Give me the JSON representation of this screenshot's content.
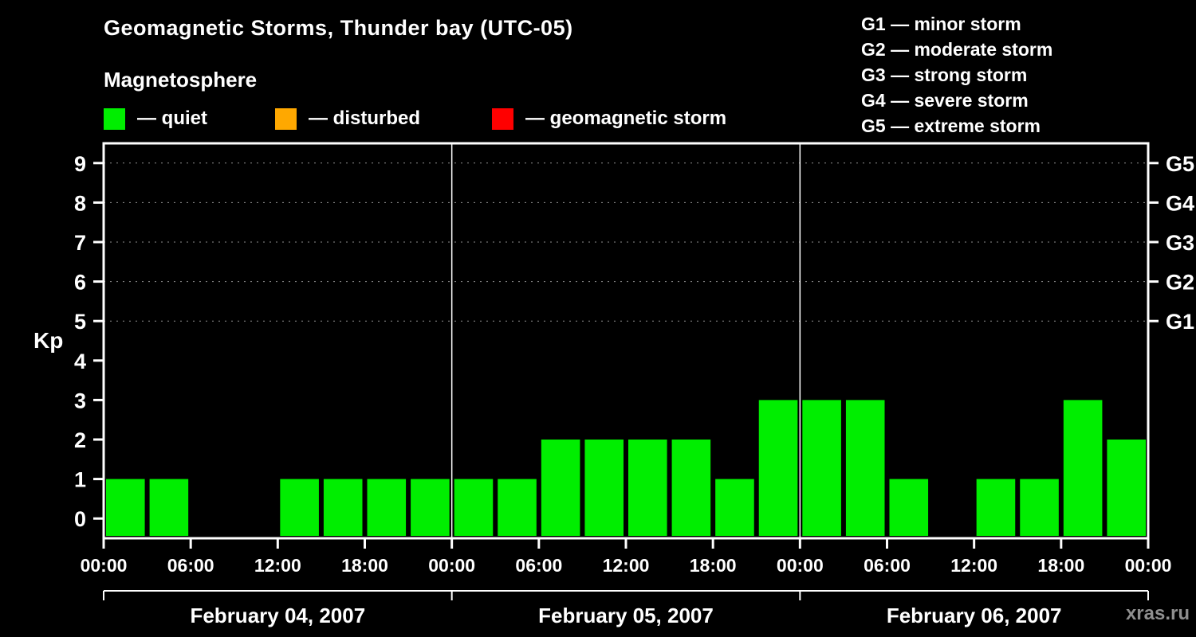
{
  "title": "Geomagnetic Storms, Thunder bay (UTC-05)",
  "subtitle": "Magnetosphere",
  "legend": {
    "items": [
      {
        "label": "— quiet",
        "color": "#00ee00"
      },
      {
        "label": "— disturbed",
        "color": "#ffa800"
      },
      {
        "label": "— geomagnetic storm",
        "color": "#ff0000"
      }
    ]
  },
  "storm_scale_legend": [
    "G1 — minor storm",
    "G2 — moderate storm",
    "G3 — strong storm",
    "G4 — severe storm",
    "G5 — extreme storm"
  ],
  "watermark": "xras.ru",
  "chart_data": {
    "type": "bar",
    "title": "Geomagnetic Storms, Thunder bay (UTC-05)",
    "ylabel": "Kp",
    "ylim": [
      0,
      9
    ],
    "y_ticks": [
      0,
      1,
      2,
      3,
      4,
      5,
      6,
      7,
      8,
      9
    ],
    "gridlines_at": [
      5,
      6,
      7,
      8,
      9
    ],
    "grid_color": "#909090",
    "right_axis_labels": [
      {
        "label": "G1",
        "value": 5
      },
      {
        "label": "G2",
        "value": 6
      },
      {
        "label": "G3",
        "value": 7
      },
      {
        "label": "G4",
        "value": 8
      },
      {
        "label": "G5",
        "value": 9
      }
    ],
    "interval_hours": 3,
    "x_tick_labels": [
      "00:00",
      "06:00",
      "12:00",
      "18:00"
    ],
    "x_end_label": "00:00",
    "days": [
      {
        "date": "February 04, 2007",
        "values": [
          1,
          1,
          0,
          0,
          1,
          1,
          1,
          1
        ]
      },
      {
        "date": "February 05, 2007",
        "values": [
          1,
          1,
          2,
          2,
          2,
          2,
          1,
          3
        ]
      },
      {
        "date": "February 06, 2007",
        "values": [
          3,
          3,
          1,
          0,
          1,
          1,
          3,
          2
        ]
      }
    ]
  }
}
